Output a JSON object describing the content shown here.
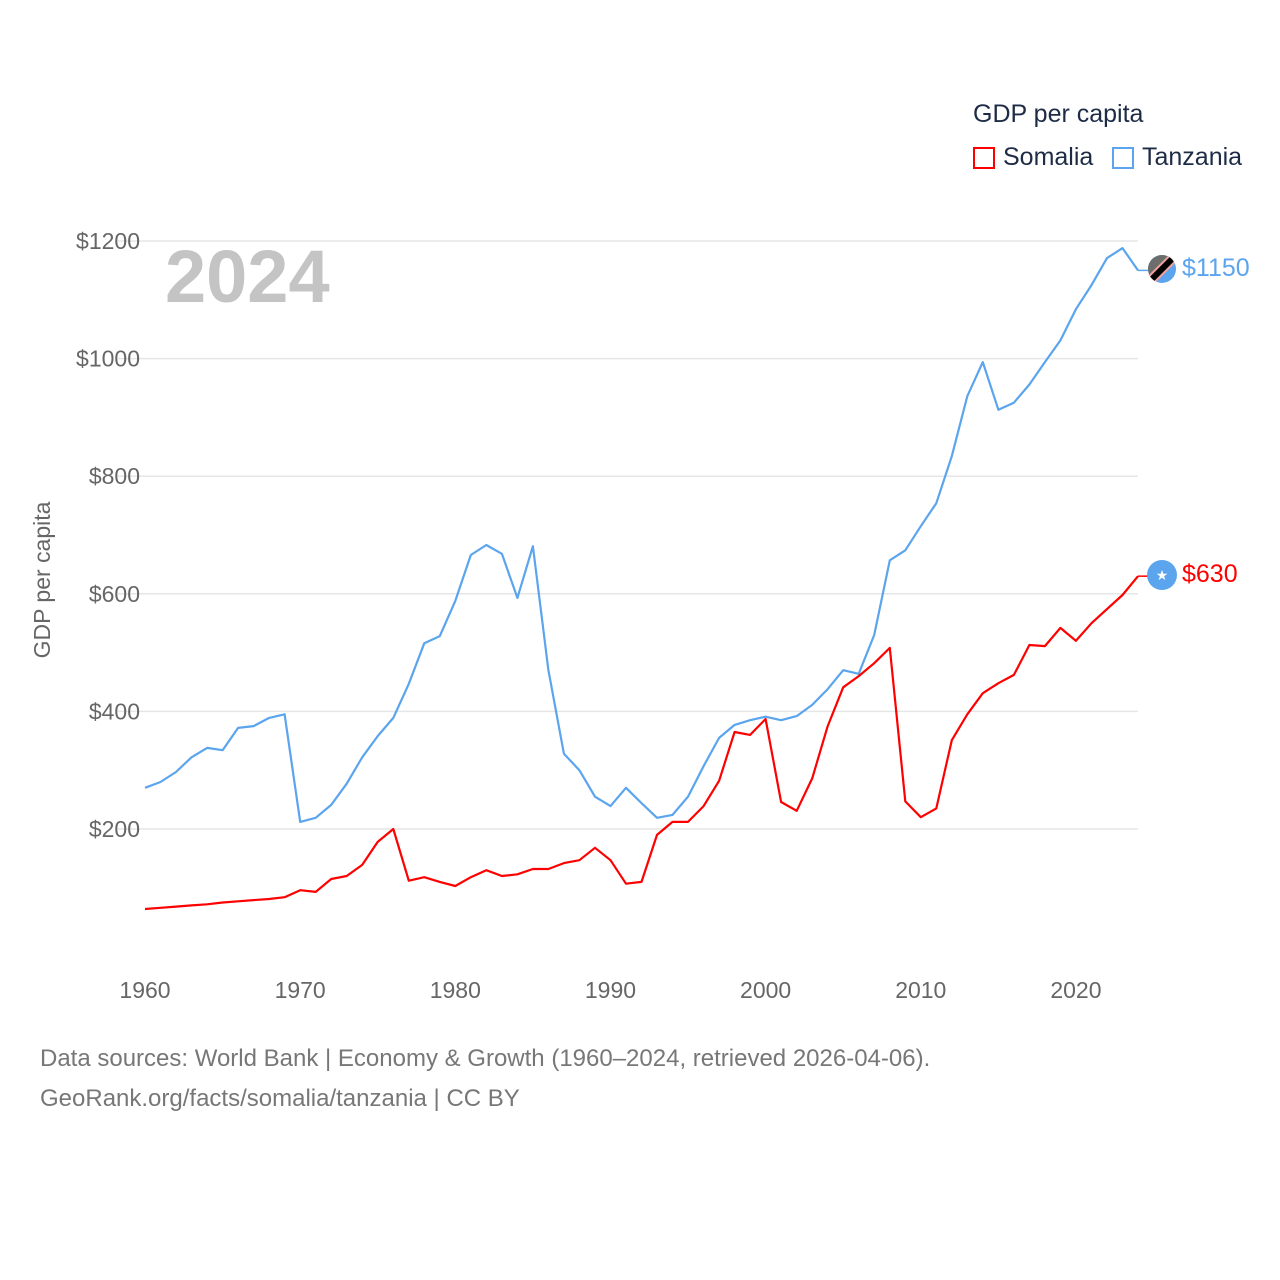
{
  "chart_data": {
    "type": "line",
    "title": "GDP per capita",
    "ylabel": "GDP per capita",
    "xlabel": "",
    "year_overlay": "2024",
    "xlim": [
      1960,
      2024
    ],
    "ylim": [
      0,
      1200
    ],
    "x_ticks": [
      1960,
      1970,
      1980,
      1990,
      2000,
      2010,
      2020
    ],
    "y_ticks": [
      200,
      400,
      600,
      800,
      1000,
      1200
    ],
    "y_tick_labels": [
      "$200",
      "$400",
      "$600",
      "$800",
      "$1000",
      "$1200"
    ],
    "grid": true,
    "legend_placement": "top-right",
    "x": [
      1960,
      1961,
      1962,
      1963,
      1964,
      1965,
      1966,
      1967,
      1968,
      1969,
      1970,
      1971,
      1972,
      1973,
      1974,
      1975,
      1976,
      1977,
      1978,
      1979,
      1980,
      1981,
      1982,
      1983,
      1984,
      1985,
      1986,
      1987,
      1988,
      1989,
      1990,
      1991,
      1992,
      1993,
      1994,
      1995,
      1996,
      1997,
      1998,
      1999,
      2000,
      2001,
      2002,
      2003,
      2004,
      2005,
      2006,
      2007,
      2008,
      2009,
      2010,
      2011,
      2012,
      2013,
      2014,
      2015,
      2016,
      2017,
      2018,
      2019,
      2020,
      2021,
      2022,
      2023,
      2024
    ],
    "series": [
      {
        "name": "Somalia",
        "color": "#ff0000",
        "end_label": "$630",
        "values": [
          64,
          66,
          68,
          70,
          72,
          75,
          77,
          79,
          81,
          84,
          96,
          93,
          115,
          120,
          139,
          178,
          200,
          112,
          118,
          110,
          103,
          118,
          130,
          120,
          123,
          132,
          132,
          142,
          147,
          168,
          147,
          107,
          110,
          190,
          212,
          212,
          239,
          282,
          365,
          360,
          387,
          246,
          231,
          286,
          375,
          441,
          460,
          482,
          508,
          247,
          220,
          235,
          351,
          395,
          431,
          448,
          462,
          513,
          511,
          542,
          520,
          550,
          574,
          598,
          630
        ]
      },
      {
        "name": "Tanzania",
        "color": "#5ba4ee",
        "end_label": "$1150",
        "values": [
          270,
          280,
          297,
          322,
          338,
          334,
          372,
          375,
          389,
          395,
          212,
          219,
          241,
          277,
          322,
          358,
          389,
          447,
          516,
          528,
          588,
          666,
          683,
          668,
          593,
          681,
          470,
          328,
          300,
          255,
          239,
          270,
          244,
          219,
          224,
          255,
          307,
          355,
          377,
          385,
          391,
          385,
          392,
          411,
          438,
          470,
          464,
          530,
          657,
          674,
          715,
          754,
          834,
          936,
          994,
          913,
          925,
          956,
          994,
          1031,
          1084,
          1125,
          1171,
          1188,
          1150
        ]
      }
    ]
  },
  "footer": {
    "line1": "Data sources: World Bank | Economy & Growth (1960–2024, retrieved 2026-04-06).",
    "line2": "GeoRank.org/facts/somalia/tanzania | CC BY"
  }
}
